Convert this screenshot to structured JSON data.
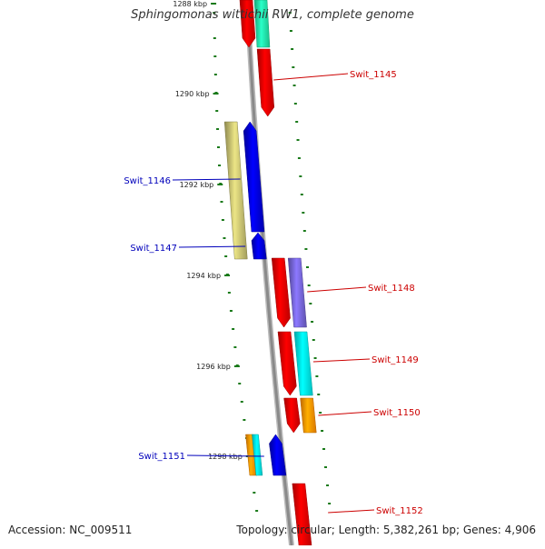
{
  "title": "Sphingomonas wittichii RW1, complete genome",
  "footer": {
    "accession": "Accession: NC_009511",
    "summary": "Topology: circular; Length: 5,382,261 bp; Genes: 4,906"
  },
  "ruler": [
    {
      "label": "1288 kbp"
    },
    {
      "label": "1290 kbp"
    },
    {
      "label": "1292 kbp"
    },
    {
      "label": "1294 kbp"
    },
    {
      "label": "1296 kbp"
    },
    {
      "label": "1298 kbp"
    }
  ],
  "genes": [
    {
      "label": "Swit_1145",
      "strand": "forward",
      "color": "#dd0000"
    },
    {
      "label": "Swit_1146",
      "strand": "reverse",
      "color": "#0000cc"
    },
    {
      "label": "Swit_1147",
      "strand": "reverse",
      "color": "#0000cc"
    },
    {
      "label": "Swit_1148",
      "strand": "forward",
      "color": "#dd0000"
    },
    {
      "label": "Swit_1149",
      "strand": "forward",
      "color": "#dd0000"
    },
    {
      "label": "Swit_1150",
      "strand": "forward",
      "color": "#dd0000"
    },
    {
      "label": "Swit_1151",
      "strand": "reverse",
      "color": "#0000cc"
    },
    {
      "label": "Swit_1152",
      "strand": "forward",
      "color": "#dd0000"
    }
  ],
  "colors": {
    "forward_label": "#cc0000",
    "reverse_label": "#0000bb",
    "backbone": "#8a8a8a",
    "tick": "#1a7a1a",
    "khaki_feature": "#bdb76b",
    "purple_feature": "#7060cc",
    "cyan_feature": "#00e0e0",
    "orange_feature": "#ff8c00",
    "teal_feature": "#20e0a0"
  }
}
